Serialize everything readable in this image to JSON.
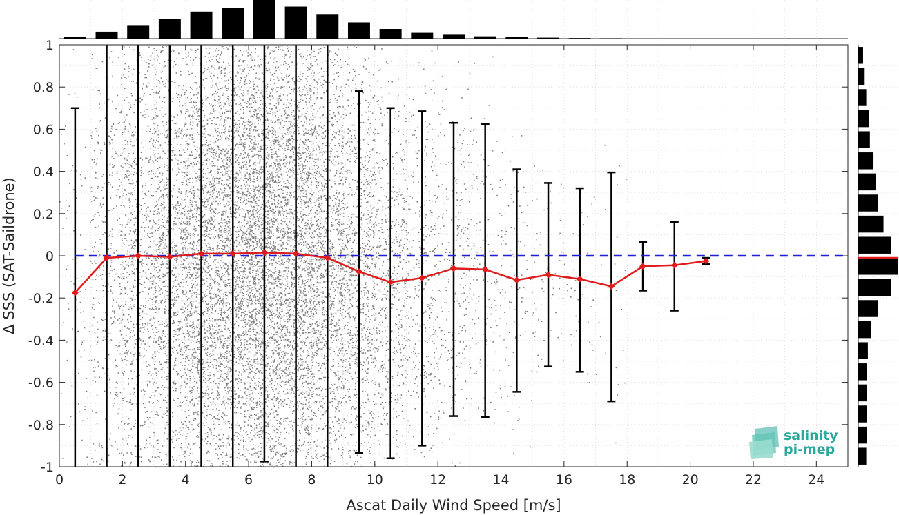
{
  "chart_data": {
    "type": "scatter",
    "xlabel": "Ascat Daily Wind Speed [m/s]",
    "ylabel": "Δ SSS (SAT-Saildrone)",
    "xlim": [
      0,
      25
    ],
    "ylim": [
      -1,
      1
    ],
    "xticks": [
      "0",
      "2",
      "4",
      "6",
      "8",
      "10",
      "12",
      "14",
      "16",
      "18",
      "20",
      "22",
      "24"
    ],
    "yticks": [
      "-1",
      "-0.8",
      "-0.6",
      "-0.4",
      "-0.2",
      "0",
      "0.2",
      "0.4",
      "0.6",
      "0.8",
      "1"
    ],
    "grid": true,
    "scatter_color": "#808080",
    "scatter_note": "dense grey point cloud of individual match-ups, densest between 2 and 9 m/s, sparse beyond 14 m/s",
    "reference_line": {
      "y": 0,
      "style": "dashed",
      "color": "#1f1fd6"
    },
    "binned_mean": {
      "color": "#e01b1b",
      "x": [
        0.5,
        1.5,
        2.5,
        3.5,
        4.5,
        5.5,
        6.5,
        7.5,
        8.5,
        9.5,
        10.5,
        11.5,
        12.5,
        13.5,
        14.5,
        15.5,
        16.5,
        17.5,
        18.5,
        19.5,
        20.5
      ],
      "mean": [
        -0.175,
        -0.01,
        0.0,
        -0.005,
        0.01,
        0.01,
        0.015,
        0.01,
        -0.01,
        -0.075,
        -0.125,
        -0.105,
        -0.06,
        -0.065,
        -0.115,
        -0.09,
        -0.11,
        -0.145,
        -0.05,
        -0.045,
        -0.025
      ],
      "err_low": [
        -1.0,
        -1.0,
        -1.0,
        -1.0,
        -1.0,
        -1.0,
        -0.975,
        -1.0,
        -1.0,
        -0.935,
        -0.96,
        -0.9,
        -0.76,
        -0.765,
        -0.645,
        -0.525,
        -0.55,
        -0.69,
        -0.165,
        -0.26,
        -0.04
      ],
      "err_high": [
        0.7,
        1.0,
        1.0,
        1.0,
        1.0,
        1.0,
        1.0,
        1.0,
        1.0,
        0.78,
        0.7,
        0.685,
        0.63,
        0.625,
        0.41,
        0.345,
        0.32,
        0.395,
        0.065,
        0.16,
        -0.01
      ]
    },
    "top_histogram": {
      "bins_x": [
        0.5,
        1.5,
        2.5,
        3.5,
        4.5,
        5.5,
        6.5,
        7.5,
        8.5,
        9.5,
        10.5,
        11.5,
        12.5,
        13.5,
        14.5,
        15.5,
        16.5,
        17.5
      ],
      "relative_counts": [
        0.04,
        0.18,
        0.35,
        0.5,
        0.7,
        0.8,
        1.0,
        0.83,
        0.62,
        0.42,
        0.25,
        0.15,
        0.1,
        0.06,
        0.04,
        0.025,
        0.015,
        0.01
      ]
    },
    "right_histogram": {
      "bins_y": [
        0.95,
        0.85,
        0.75,
        0.65,
        0.55,
        0.45,
        0.35,
        0.25,
        0.15,
        0.05,
        -0.05,
        -0.15,
        -0.25,
        -0.35,
        -0.45,
        -0.55,
        -0.65,
        -0.75,
        -0.85,
        -0.95
      ],
      "relative_counts": [
        0.12,
        0.16,
        0.2,
        0.26,
        0.29,
        0.38,
        0.44,
        0.5,
        0.63,
        0.82,
        1.0,
        0.82,
        0.5,
        0.32,
        0.24,
        0.22,
        0.22,
        0.22,
        0.22,
        0.2
      ],
      "median_line": {
        "y": -0.01,
        "color": "#e01b1b"
      }
    }
  },
  "logo": {
    "line1": "salinity",
    "line2": "pi-mep",
    "color": "#2aa89a"
  }
}
